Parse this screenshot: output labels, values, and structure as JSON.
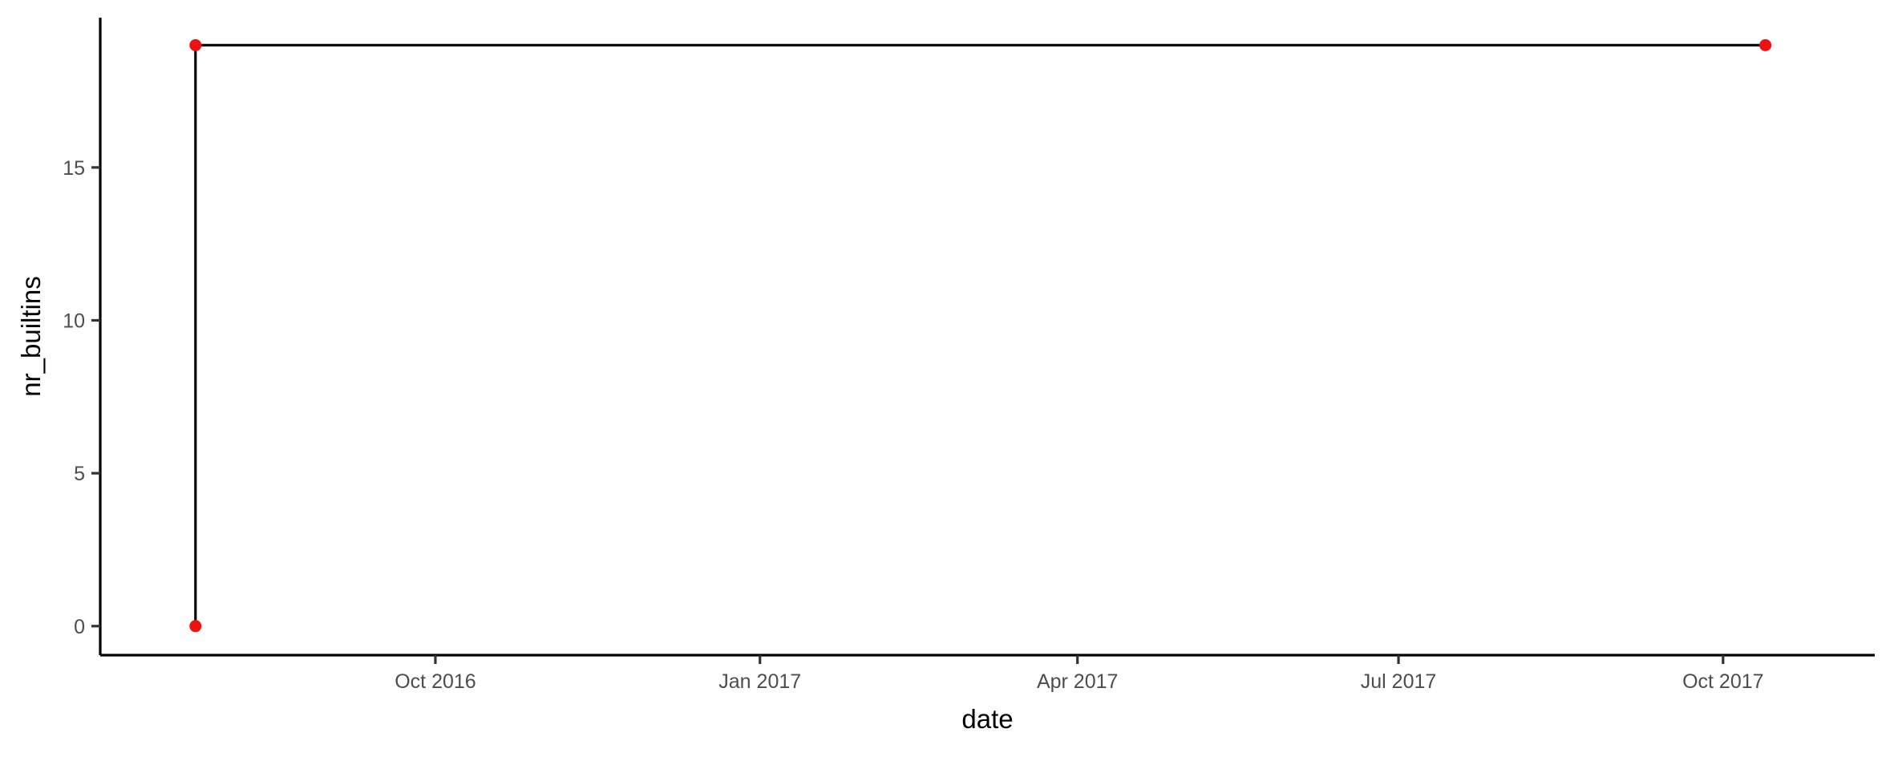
{
  "chart_data": {
    "type": "line",
    "line_style": "step",
    "xlabel": "date",
    "ylabel": "nr_builtins",
    "x_type": "date",
    "xlim": [
      "2016-06-28",
      "2017-11-13"
    ],
    "ylim": [
      -0.95,
      19.9
    ],
    "x_ticks": [
      {
        "value": "2016-10-01",
        "label": "Oct 2016"
      },
      {
        "value": "2017-01-01",
        "label": "Jan 2017"
      },
      {
        "value": "2017-04-01",
        "label": "Apr 2017"
      },
      {
        "value": "2017-07-01",
        "label": "Jul 2017"
      },
      {
        "value": "2017-10-01",
        "label": "Oct 2017"
      }
    ],
    "y_ticks": [
      {
        "value": 0,
        "label": "0"
      },
      {
        "value": 5,
        "label": "5"
      },
      {
        "value": 10,
        "label": "10"
      },
      {
        "value": 15,
        "label": "15"
      }
    ],
    "series": [
      {
        "points": [
          {
            "x": "2016-07-25",
            "y": 0
          },
          {
            "x": "2016-07-25",
            "y": 19
          },
          {
            "x": "2017-10-13",
            "y": 19
          }
        ]
      }
    ],
    "point_color": "#ee1111",
    "line_color": "#000000",
    "grid": false,
    "legend": "none"
  }
}
